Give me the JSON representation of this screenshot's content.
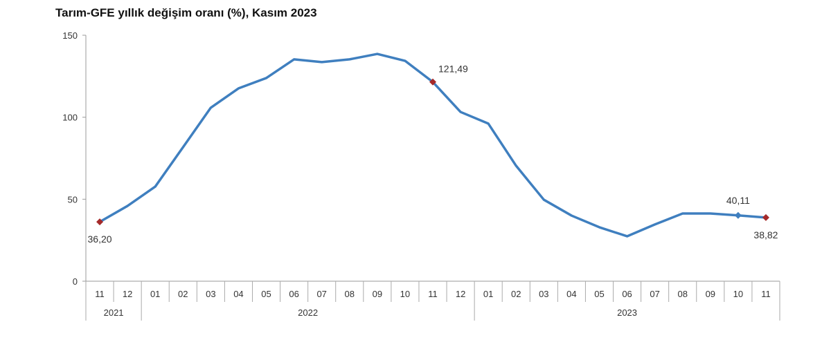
{
  "chart_data": {
    "type": "line",
    "title": "Tarım-GFE yıllık değişim oranı (%), Kasım 2023",
    "xlabel": "",
    "ylabel": "",
    "ylim": [
      0,
      150
    ],
    "yticks": [
      "0",
      "50",
      "100",
      "150"
    ],
    "categories": [
      "11",
      "12",
      "01",
      "02",
      "03",
      "04",
      "05",
      "06",
      "07",
      "08",
      "09",
      "10",
      "11",
      "12",
      "01",
      "02",
      "03",
      "04",
      "05",
      "06",
      "07",
      "08",
      "09",
      "10",
      "11"
    ],
    "years": [
      {
        "label": "2021",
        "span": 2
      },
      {
        "label": "2022",
        "span": 12
      },
      {
        "label": "2023",
        "span": 11
      }
    ],
    "series": [
      {
        "name": "Tarım-GFE",
        "color": "#3f7fbf",
        "values": [
          36.2,
          45.9,
          57.7,
          81.7,
          105.8,
          117.6,
          123.9,
          135.3,
          133.6,
          135.3,
          138.6,
          134.4,
          121.49,
          103.2,
          96.1,
          70.4,
          49.7,
          40.0,
          32.9,
          27.4,
          34.6,
          41.3,
          41.3,
          40.11,
          38.82
        ]
      }
    ],
    "annotations": [
      {
        "index": 0,
        "text": "36,20",
        "marker_color": "#a52a2a",
        "position": "below"
      },
      {
        "index": 12,
        "text": "121,49",
        "marker_color": "#a52a2a",
        "position": "above-right"
      },
      {
        "index": 23,
        "text": "40,11",
        "marker_color": "#3f7fbf",
        "position": "above"
      },
      {
        "index": 24,
        "text": "38,82",
        "marker_color": "#a52a2a",
        "position": "below"
      }
    ]
  }
}
